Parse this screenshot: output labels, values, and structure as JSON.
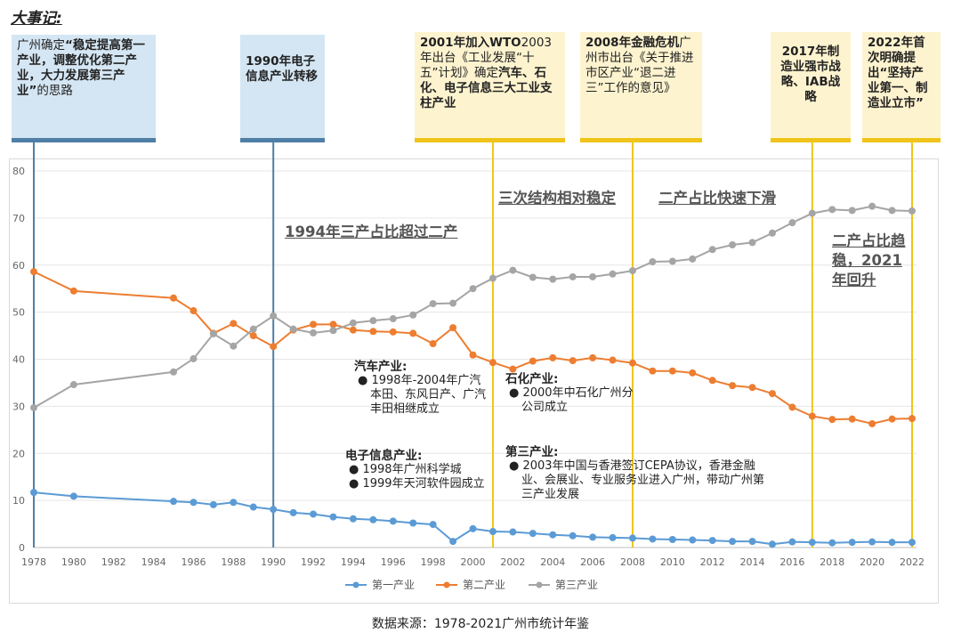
{
  "header": {
    "title": "大事记:"
  },
  "events": [
    {
      "id": "e1978",
      "lines": [
        {
          "t": "广州确定",
          "b": false
        },
        {
          "t": "“稳定提高第一产业，调整优化第二产业，大力发展第三产业”",
          "b": true
        },
        {
          "t": "的思路",
          "b": false
        }
      ]
    },
    {
      "id": "e1990",
      "lines": [
        {
          "t": "1990年电子信息产业转移",
          "b": true
        }
      ]
    },
    {
      "id": "e2001",
      "lines": [
        {
          "t": "2001年加入WTO",
          "b": true
        },
        {
          "t": "2003年出台《工业发展“十五”计划》确定",
          "b": false
        },
        {
          "t": "汽车、石化、电子信息三大工业支柱产业",
          "b": true
        }
      ]
    },
    {
      "id": "e2008",
      "lines": [
        {
          "t": "2008年金融危机",
          "b": true
        },
        {
          "t": "广州市出台《关于推进市区产业“退二进三”工作的意见》",
          "b": false
        }
      ]
    },
    {
      "id": "e2017",
      "lines": [
        {
          "t": "2017年制造业强市战略、IAB战略",
          "b": true
        }
      ]
    },
    {
      "id": "e2022",
      "lines": [
        {
          "t": "2022年首次明确提出“坚持产业第一、制造业立市”",
          "b": true
        }
      ]
    }
  ],
  "phases": {
    "p1994": "1994年三产占比超过二产",
    "p_stable": "三次结构相对稳定",
    "p_decline": "二产占比快速下滑",
    "p_rebound": "二产占比趋稳，2021年回升"
  },
  "annotations": {
    "auto": {
      "title": "汽车产业:",
      "items": [
        "1998年-2004年广汽本田、东风日产、广汽丰田相继成立"
      ]
    },
    "electronics": {
      "title": "电子信息产业:",
      "items": [
        "1998年广州科学城",
        "1999年天河软件园成立"
      ]
    },
    "petro": {
      "title": "石化产业:",
      "items": [
        "2000年中石化广州分公司成立"
      ]
    },
    "tertiary": {
      "title": "第三产业:",
      "items": [
        "2003年中国与香港签订CEPA协议，香港金融业、会展业、专业服务业进入广州，带动广州第三产业发展"
      ]
    }
  },
  "source": "数据来源：1978-2021广州市统计年鉴",
  "chart_data": {
    "type": "line",
    "ylim": [
      0,
      80
    ],
    "yticks": [
      0,
      10,
      20,
      30,
      40,
      50,
      60,
      70,
      80
    ],
    "xlim": [
      1978,
      2022
    ],
    "xticks": [
      1978,
      1980,
      1982,
      1984,
      1986,
      1988,
      1990,
      1992,
      1994,
      1996,
      1998,
      2000,
      2002,
      2004,
      2006,
      2008,
      2010,
      2012,
      2014,
      2016,
      2018,
      2020,
      2022
    ],
    "legend_position": "bottom",
    "grid": "horizontal",
    "x": [
      1978,
      1980,
      1985,
      1986,
      1987,
      1988,
      1989,
      1990,
      1991,
      1992,
      1993,
      1994,
      1995,
      1996,
      1997,
      1998,
      1999,
      2000,
      2001,
      2002,
      2003,
      2004,
      2005,
      2006,
      2007,
      2008,
      2009,
      2010,
      2011,
      2012,
      2013,
      2014,
      2015,
      2016,
      2017,
      2018,
      2019,
      2020,
      2021,
      2022
    ],
    "series": [
      {
        "name": "第一产业",
        "color": "#5b9bd5",
        "values": [
          11.7,
          10.9,
          9.8,
          9.6,
          9.1,
          9.6,
          8.6,
          8.1,
          7.4,
          7.1,
          6.5,
          6.1,
          5.9,
          5.6,
          5.2,
          4.9,
          1.3,
          4.0,
          3.4,
          3.3,
          3.0,
          2.7,
          2.5,
          2.2,
          2.1,
          2.0,
          1.8,
          1.7,
          1.6,
          1.5,
          1.3,
          1.3,
          0.7,
          1.2,
          1.1,
          1.0,
          1.1,
          1.2,
          1.1,
          1.1
        ]
      },
      {
        "name": "第二产业",
        "color": "#ed7d31",
        "values": [
          58.6,
          54.5,
          53.0,
          50.3,
          45.5,
          47.6,
          45.0,
          42.7,
          46.2,
          47.4,
          47.4,
          46.2,
          45.9,
          45.8,
          45.5,
          43.3,
          46.7,
          40.9,
          39.3,
          37.9,
          39.6,
          40.3,
          39.7,
          40.3,
          39.8,
          39.2,
          37.5,
          37.5,
          37.1,
          35.5,
          34.4,
          34.0,
          32.7,
          29.8,
          27.9,
          27.2,
          27.3,
          26.3,
          27.3,
          27.4
        ]
      },
      {
        "name": "第三产业",
        "color": "#a5a5a5",
        "values": [
          29.7,
          34.6,
          37.3,
          40.1,
          45.4,
          42.8,
          46.4,
          49.2,
          46.4,
          45.6,
          46.1,
          47.7,
          48.2,
          48.6,
          49.4,
          51.8,
          51.9,
          55.0,
          57.2,
          58.9,
          57.4,
          57.0,
          57.5,
          57.5,
          58.1,
          58.8,
          60.7,
          60.8,
          61.3,
          63.3,
          64.3,
          64.8,
          66.8,
          69.0,
          71.0,
          71.8,
          71.6,
          72.5,
          71.6,
          71.5
        ]
      }
    ]
  }
}
